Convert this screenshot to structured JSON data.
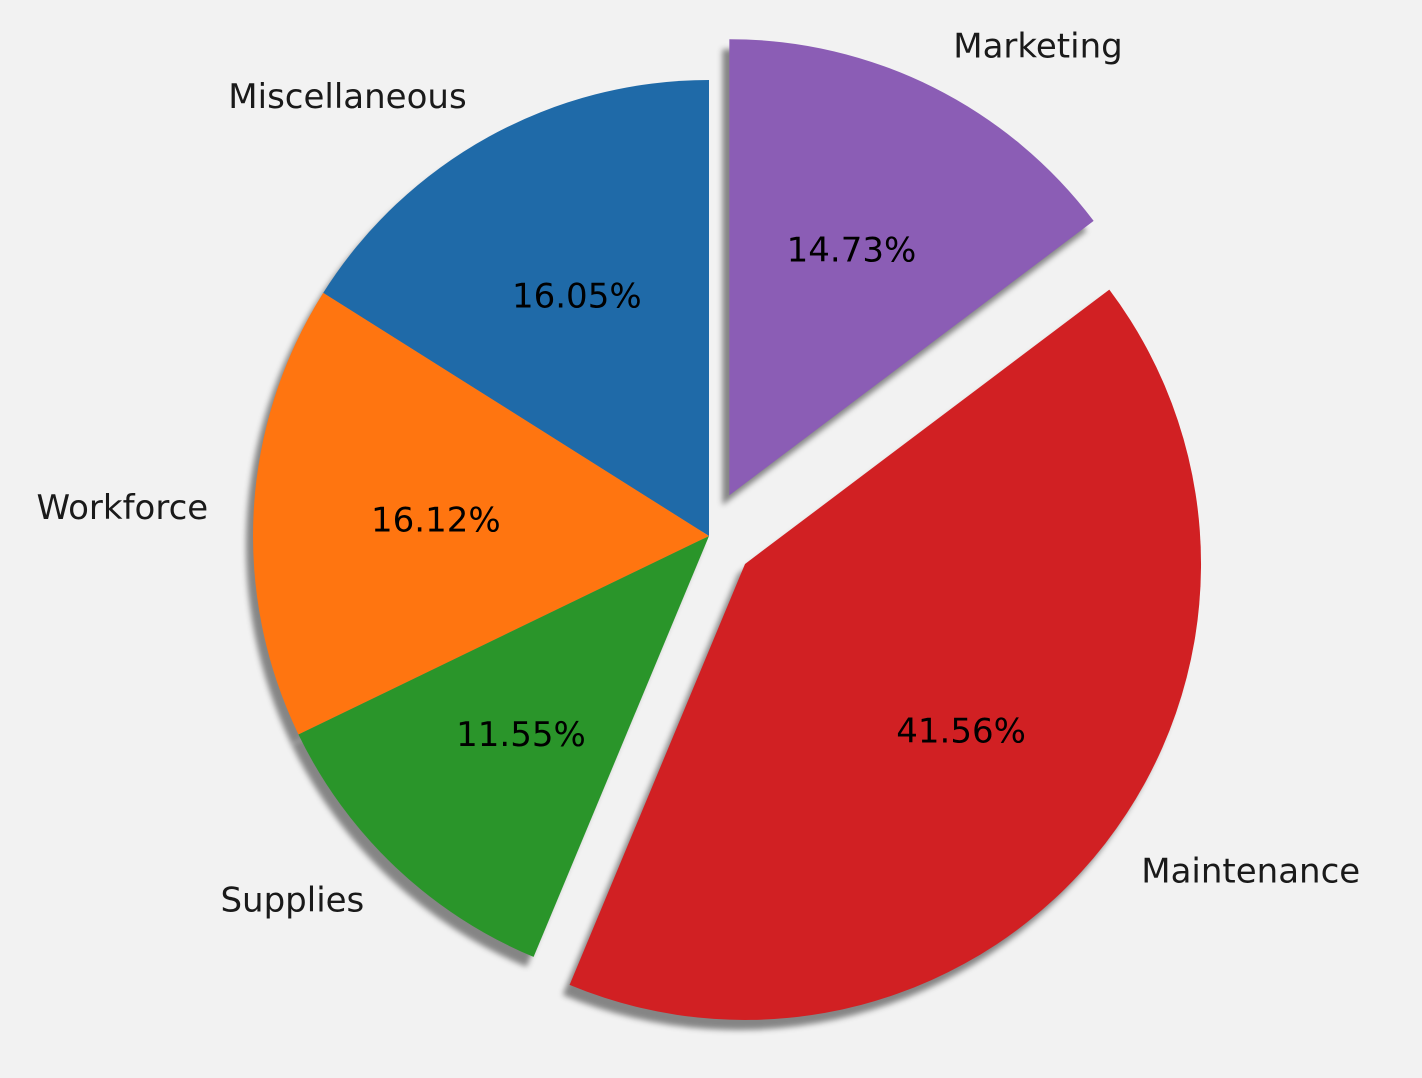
{
  "chart_data": {
    "type": "pie",
    "title": "",
    "start_angle_deg": 90,
    "counterclockwise": true,
    "shadow": true,
    "slices": [
      {
        "label": "Miscellaneous",
        "value": 16.05,
        "pct_label": "16.05%",
        "color": "#1f6aa8",
        "exploded": false
      },
      {
        "label": "Workforce",
        "value": 16.12,
        "pct_label": "16.12%",
        "color": "#ff7510",
        "exploded": false
      },
      {
        "label": "Supplies",
        "value": 11.55,
        "pct_label": "11.55%",
        "color": "#2a952a",
        "exploded": false
      },
      {
        "label": "Maintenance",
        "value": 41.56,
        "pct_label": "41.56%",
        "color": "#d12023",
        "exploded": true
      },
      {
        "label": "Marketing",
        "value": 14.73,
        "pct_label": "14.73%",
        "color": "#8b5db5",
        "exploded": true
      }
    ]
  }
}
